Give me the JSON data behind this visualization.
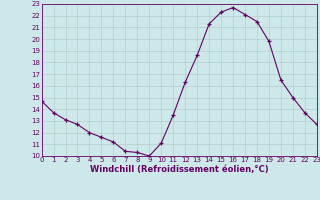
{
  "x": [
    0,
    1,
    2,
    3,
    4,
    5,
    6,
    7,
    8,
    9,
    10,
    11,
    12,
    13,
    14,
    15,
    16,
    17,
    18,
    19,
    20,
    21,
    22,
    23
  ],
  "y": [
    14.7,
    13.7,
    13.1,
    12.7,
    12.0,
    11.6,
    11.2,
    10.4,
    10.3,
    10.0,
    11.1,
    13.5,
    16.3,
    18.6,
    21.3,
    22.3,
    22.7,
    22.1,
    21.5,
    19.8,
    16.5,
    15.0,
    13.7,
    12.7
  ],
  "xlim": [
    0,
    23
  ],
  "ylim": [
    10,
    23
  ],
  "yticks": [
    10,
    11,
    12,
    13,
    14,
    15,
    16,
    17,
    18,
    19,
    20,
    21,
    22,
    23
  ],
  "xticks": [
    0,
    1,
    2,
    3,
    4,
    5,
    6,
    7,
    8,
    9,
    10,
    11,
    12,
    13,
    14,
    15,
    16,
    17,
    18,
    19,
    20,
    21,
    22,
    23
  ],
  "xlabel": "Windchill (Refroidissement éolien,°C)",
  "line_color": "#660066",
  "marker": "+",
  "bg_color": "#cce8e8",
  "grid_color": "#b0c8c8",
  "tick_fontsize": 5.0,
  "xlabel_fontsize": 6.0
}
